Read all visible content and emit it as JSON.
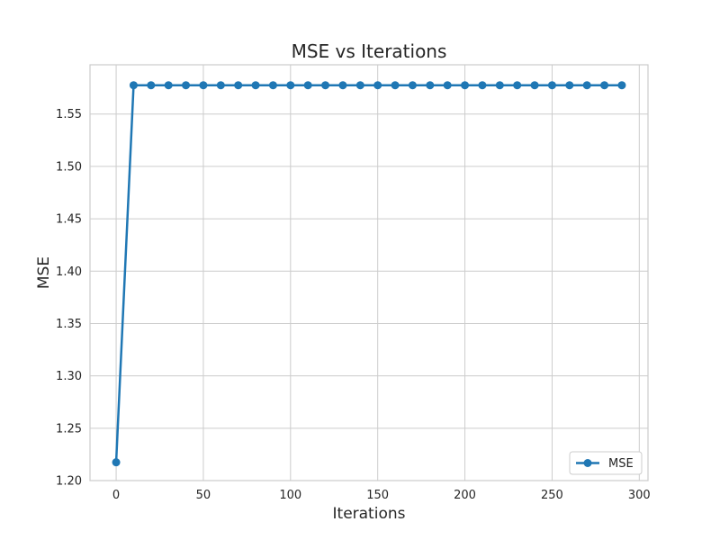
{
  "chart_data": {
    "type": "line",
    "title": "MSE vs Iterations",
    "xlabel": "Iterations",
    "ylabel": "MSE",
    "xlim": [
      -15,
      305
    ],
    "ylim": [
      1.2,
      1.597
    ],
    "xticks": [
      0,
      50,
      100,
      150,
      200,
      250,
      300
    ],
    "xtick_labels": [
      "0",
      "50",
      "100",
      "150",
      "200",
      "250",
      "300"
    ],
    "yticks": [
      1.2,
      1.25,
      1.3,
      1.35,
      1.4,
      1.45,
      1.5,
      1.55
    ],
    "ytick_labels": [
      "1.20",
      "1.25",
      "1.30",
      "1.35",
      "1.40",
      "1.45",
      "1.50",
      "1.55"
    ],
    "grid": true,
    "legend_position": "lower-right",
    "series": [
      {
        "name": "MSE",
        "color": "#1f77b4",
        "marker": "circle",
        "x": [
          0,
          10,
          20,
          30,
          40,
          50,
          60,
          70,
          80,
          90,
          100,
          110,
          120,
          130,
          140,
          150,
          160,
          170,
          180,
          190,
          200,
          210,
          220,
          230,
          240,
          250,
          260,
          270,
          280,
          290
        ],
        "y": [
          1.2175,
          1.5775,
          1.5775,
          1.5775,
          1.5775,
          1.5775,
          1.5775,
          1.5775,
          1.5775,
          1.5775,
          1.5775,
          1.5775,
          1.5775,
          1.5775,
          1.5775,
          1.5775,
          1.5775,
          1.5775,
          1.5775,
          1.5775,
          1.5775,
          1.5775,
          1.5775,
          1.5775,
          1.5775,
          1.5775,
          1.5775,
          1.5775,
          1.5775,
          1.5775
        ]
      }
    ]
  }
}
